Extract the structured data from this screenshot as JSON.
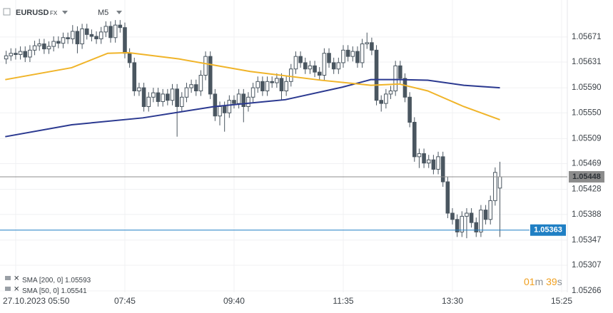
{
  "chart_data": {
    "type": "candlestick",
    "symbol": "EURUSD",
    "market": "FX",
    "timeframe": "M5",
    "x": [
      340,
      345,
      350,
      355,
      360,
      365,
      370,
      375,
      380,
      385,
      390,
      395,
      400,
      405,
      410,
      415,
      420,
      425,
      430,
      435,
      440,
      445,
      450,
      455,
      460,
      465,
      470,
      475,
      480,
      485,
      490,
      495,
      500,
      505,
      510,
      515,
      520,
      525,
      530,
      535,
      540,
      545,
      550,
      555,
      560,
      565,
      570,
      575,
      580,
      585,
      590,
      595,
      600,
      605,
      610,
      615,
      620,
      625,
      630,
      635,
      640,
      645,
      650,
      655,
      660,
      665,
      670,
      675,
      680,
      685,
      690,
      695,
      700,
      705,
      710,
      715,
      720,
      725,
      730,
      735,
      740,
      745,
      750,
      755,
      760,
      765,
      770,
      775,
      780,
      785,
      790,
      795,
      800,
      805,
      810,
      815,
      820,
      825,
      830,
      835,
      840,
      845,
      850,
      855,
      860
    ],
    "ohlc": [
      [
        1.05636,
        1.05649,
        1.05628,
        1.05641
      ],
      [
        1.05641,
        1.05653,
        1.05633,
        1.05645
      ],
      [
        1.05645,
        1.05653,
        1.05635,
        1.05643
      ],
      [
        1.05643,
        1.05656,
        1.05635,
        1.05648
      ],
      [
        1.05648,
        1.05656,
        1.05631,
        1.05639
      ],
      [
        1.05639,
        1.05658,
        1.05631,
        1.0565
      ],
      [
        1.0565,
        1.05665,
        1.05642,
        1.05657
      ],
      [
        1.05657,
        1.05668,
        1.05649,
        1.0566
      ],
      [
        1.0566,
        1.05668,
        1.05644,
        1.05652
      ],
      [
        1.05652,
        1.05664,
        1.05644,
        1.05656
      ],
      [
        1.05656,
        1.05672,
        1.05648,
        1.05664
      ],
      [
        1.05664,
        1.05672,
        1.05653,
        1.05661
      ],
      [
        1.05661,
        1.05678,
        1.05653,
        1.0567
      ],
      [
        1.0567,
        1.05678,
        1.0566,
        1.05668
      ],
      [
        1.05668,
        1.0569,
        1.0566,
        1.0568
      ],
      [
        1.0568,
        1.05688,
        1.05645,
        1.0566
      ],
      [
        1.0566,
        1.05692,
        1.05652,
        1.05684
      ],
      [
        1.05684,
        1.05692,
        1.05667,
        1.05675
      ],
      [
        1.05675,
        1.05683,
        1.05664,
        1.05672
      ],
      [
        1.05672,
        1.0568,
        1.0566,
        1.05668
      ],
      [
        1.05668,
        1.05687,
        1.0566,
        1.05679
      ],
      [
        1.05679,
        1.05696,
        1.05671,
        1.05688
      ],
      [
        1.05688,
        1.05696,
        1.05662,
        1.0567
      ],
      [
        1.0567,
        1.05698,
        1.05662,
        1.0569
      ],
      [
        1.0569,
        1.05698,
        1.05678,
        1.05686
      ],
      [
        1.05686,
        1.05694,
        1.05637,
        1.05645
      ],
      [
        1.05645,
        1.05653,
        1.05622,
        1.0563
      ],
      [
        1.0563,
        1.05638,
        1.05577,
        1.05585
      ],
      [
        1.05585,
        1.05598,
        1.05577,
        1.0559
      ],
      [
        1.0559,
        1.05598,
        1.05552,
        1.0556
      ],
      [
        1.0556,
        1.05583,
        1.05552,
        1.05575
      ],
      [
        1.05575,
        1.0559,
        1.05567,
        1.05582
      ],
      [
        1.05582,
        1.0559,
        1.0556,
        1.05568
      ],
      [
        1.05568,
        1.05588,
        1.0556,
        1.0558
      ],
      [
        1.0558,
        1.05588,
        1.05562,
        1.0557
      ],
      [
        1.0557,
        1.05596,
        1.05562,
        1.05588
      ],
      [
        1.05588,
        1.05596,
        1.05512,
        1.0556
      ],
      [
        1.0556,
        1.05583,
        1.05552,
        1.05575
      ],
      [
        1.05575,
        1.05598,
        1.05567,
        1.0559
      ],
      [
        1.0559,
        1.05603,
        1.05582,
        1.05595
      ],
      [
        1.05595,
        1.05603,
        1.05577,
        1.05585
      ],
      [
        1.05585,
        1.05618,
        1.05577,
        1.0561
      ],
      [
        1.0561,
        1.05648,
        1.05602,
        1.0564
      ],
      [
        1.0564,
        1.05648,
        1.05572,
        1.0558
      ],
      [
        1.0558,
        1.05588,
        1.05537,
        1.05545
      ],
      [
        1.05545,
        1.05568,
        1.0553,
        1.0556
      ],
      [
        1.0556,
        1.05568,
        1.0552,
        1.0555
      ],
      [
        1.0555,
        1.05578,
        1.05542,
        1.0557
      ],
      [
        1.0557,
        1.05578,
        1.05557,
        1.05565
      ],
      [
        1.05565,
        1.05588,
        1.05557,
        1.0558
      ],
      [
        1.0558,
        1.05588,
        1.05535,
        1.0556
      ],
      [
        1.0556,
        1.05583,
        1.05552,
        1.05575
      ],
      [
        1.05575,
        1.05598,
        1.05567,
        1.0559
      ],
      [
        1.0559,
        1.05608,
        1.05582,
        1.056
      ],
      [
        1.056,
        1.05608,
        1.05577,
        1.05585
      ],
      [
        1.05585,
        1.05608,
        1.05577,
        1.056
      ],
      [
        1.056,
        1.05608,
        1.0559,
        1.05598
      ],
      [
        1.05598,
        1.05613,
        1.0559,
        1.05605
      ],
      [
        1.05605,
        1.05613,
        1.0557,
        1.05585
      ],
      [
        1.05585,
        1.05608,
        1.05577,
        1.056
      ],
      [
        1.056,
        1.05628,
        1.05592,
        1.0562
      ],
      [
        1.0562,
        1.05648,
        1.05612,
        1.0564
      ],
      [
        1.0564,
        1.05648,
        1.05622,
        1.0563
      ],
      [
        1.0563,
        1.05638,
        1.05612,
        1.0562
      ],
      [
        1.0562,
        1.05633,
        1.05612,
        1.05625
      ],
      [
        1.05625,
        1.05633,
        1.05607,
        1.05615
      ],
      [
        1.05615,
        1.05623,
        1.05602,
        1.0561
      ],
      [
        1.0561,
        1.05653,
        1.05602,
        1.05645
      ],
      [
        1.05645,
        1.05653,
        1.05622,
        1.0563
      ],
      [
        1.0563,
        1.05638,
        1.05612,
        1.0562
      ],
      [
        1.0562,
        1.05638,
        1.05612,
        1.0563
      ],
      [
        1.0563,
        1.05658,
        1.05622,
        1.0565
      ],
      [
        1.0565,
        1.05658,
        1.05632,
        1.0564
      ],
      [
        1.0564,
        1.05656,
        1.05632,
        1.05648
      ],
      [
        1.05648,
        1.05656,
        1.05622,
        1.0563
      ],
      [
        1.0563,
        1.05668,
        1.05622,
        1.0566
      ],
      [
        1.0566,
        1.05678,
        1.05652,
        1.05662
      ],
      [
        1.05662,
        1.0567,
        1.05642,
        1.0565
      ],
      [
        1.0565,
        1.05658,
        1.05562,
        1.0557
      ],
      [
        1.0557,
        1.05578,
        1.05552,
        1.05565
      ],
      [
        1.05565,
        1.05588,
        1.05557,
        1.0558
      ],
      [
        1.0558,
        1.05593,
        1.05572,
        1.05585
      ],
      [
        1.05585,
        1.05633,
        1.05577,
        1.05625
      ],
      [
        1.05625,
        1.05633,
        1.05597,
        1.05605
      ],
      [
        1.05605,
        1.05613,
        1.05567,
        1.05575
      ],
      [
        1.05575,
        1.05583,
        1.05527,
        1.05535
      ],
      [
        1.05535,
        1.05543,
        1.05472,
        1.0548
      ],
      [
        1.0548,
        1.05493,
        1.05462,
        1.05485
      ],
      [
        1.05485,
        1.05493,
        1.05462,
        1.0547
      ],
      [
        1.0547,
        1.05483,
        1.05462,
        1.05475
      ],
      [
        1.05475,
        1.05483,
        1.05452,
        1.0546
      ],
      [
        1.0546,
        1.05488,
        1.05452,
        1.0548
      ],
      [
        1.0548,
        1.05488,
        1.05432,
        1.0544
      ],
      [
        1.0544,
        1.05448,
        1.05382,
        1.0539
      ],
      [
        1.0539,
        1.05398,
        1.05372,
        1.0538
      ],
      [
        1.0538,
        1.05388,
        1.05352,
        1.0536
      ],
      [
        1.0536,
        1.05393,
        1.05352,
        1.05385
      ],
      [
        1.05385,
        1.05398,
        1.0535,
        1.0539
      ],
      [
        1.0539,
        1.05398,
        1.05367,
        1.05375
      ],
      [
        1.05375,
        1.05383,
        1.05352,
        1.0536
      ],
      [
        1.0536,
        1.05403,
        1.05352,
        1.05395
      ],
      [
        1.05395,
        1.05403,
        1.05372,
        1.0538
      ],
      [
        1.0538,
        1.05418,
        1.05372,
        1.0541
      ],
      [
        1.0541,
        1.05463,
        1.05402,
        1.05455
      ],
      [
        1.0543,
        1.05472,
        1.05352,
        1.05448
      ]
    ],
    "up_color": "#ffffff",
    "down_color": "#4a5660",
    "xlim": [
      333.5,
      931
    ],
    "xticks": [
      {
        "value": 350,
        "label": "27.10.2023 05:50"
      },
      {
        "value": 465,
        "label": "07:45"
      },
      {
        "value": 580,
        "label": "09:40"
      },
      {
        "value": 695,
        "label": "11:35"
      },
      {
        "value": 810,
        "label": "13:30"
      },
      {
        "value": 925,
        "label": "15:25"
      }
    ],
    "ylim": [
      1.05241,
      1.0573
    ],
    "yticks": [
      1.05266,
      1.05307,
      1.05347,
      1.05388,
      1.05428,
      1.05469,
      1.05509,
      {
        "value": 1.0555,
        "label": "1.05550"
      },
      {
        "value": 1.0559,
        "label": "1.05590"
      },
      1.05631,
      1.05671
    ],
    "grid": true,
    "series": [
      {
        "name": "SMA [200, 0]",
        "legend_value": "1.05593",
        "color": "#2b3990",
        "x": [
          339,
          409,
          484,
          559,
          634,
          694,
          724,
          754,
          784,
          822,
          860
        ],
        "values": [
          1.05512,
          1.05531,
          1.05542,
          1.0556,
          1.05571,
          1.05591,
          1.05603,
          1.05603,
          1.05602,
          1.05594,
          1.0559
        ]
      },
      {
        "name": "SMA [50, 0]",
        "legend_value": "1.05541",
        "color": "#f0b429",
        "x": [
          339,
          409,
          447,
          469,
          522,
          597,
          672,
          724,
          754,
          784,
          822,
          860
        ],
        "values": [
          1.05603,
          1.05622,
          1.05645,
          1.05646,
          1.05636,
          1.05616,
          1.05602,
          1.05594,
          1.05596,
          1.05585,
          1.0556,
          1.05539
        ]
      }
    ],
    "price_lines": [
      {
        "value": 1.05448,
        "color": "#8c8c8c"
      },
      {
        "value": 1.05363,
        "color": "#1f7fc4"
      }
    ],
    "countdown": {
      "minutes": "01",
      "minutes_unit": "m",
      "seconds": "39",
      "seconds_unit": "s"
    }
  }
}
